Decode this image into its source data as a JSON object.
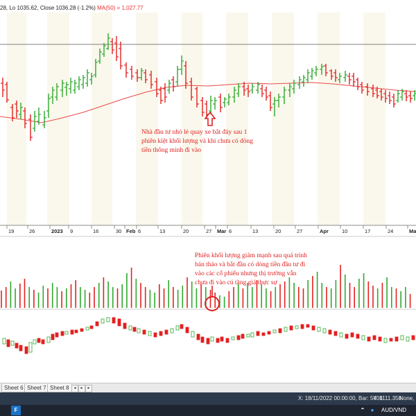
{
  "header": {
    "ohlc_text": "28, Lo 1035.62, Close 1036.28 (-1.2%)",
    "ma_text": "MA(50) = 1,027.77",
    "ma_color": "#e8312e"
  },
  "colors": {
    "up": "#2ea82e",
    "down": "#e32020",
    "ma": "#e84a4a",
    "annotation": "#e02020",
    "grid_band": "#f6f2dc"
  },
  "x_axis": {
    "labels": [
      "19",
      "26",
      "2023",
      "9",
      "16",
      "30",
      "Feb",
      "6",
      "13",
      "20",
      "27",
      "Mar",
      "6",
      "13",
      "20",
      "27",
      "Apr",
      "10",
      "17",
      "24",
      "Ma"
    ]
  },
  "annotations": {
    "price_note": [
      "Nhà đầu tư nhỏ lẻ quay xe bắt đáy sau 1",
      "phiên kiệt khối lượng và khi chưa có dòng",
      "tiền thông minh đi vào"
    ],
    "volume_note": [
      "Phiên khối lượng giảm mạnh sau quá trình",
      "bán tháo và bắt đầu có dòng tiền đầu tư đi",
      "vào các cổ phiếu nhưng thị trường vẫn",
      "chưa đi vào cú tăng giá thực sự"
    ]
  },
  "chart_data": {
    "type": "candlestick",
    "symbol_note": "OHLC price bars with MA(50), volume histogram and lower oscillator",
    "x": [
      "Dec 19",
      "Dec 26",
      "Jan 2 2023",
      "Jan 9",
      "Jan 16",
      "Jan 30",
      "Feb 6",
      "Feb 13",
      "Feb 20",
      "Feb 27",
      "Mar 6",
      "Mar 13",
      "Mar 20",
      "Mar 27",
      "Apr 10",
      "Apr 17",
      "Apr 24"
    ],
    "close_series_approx": [
      1080,
      1040,
      1030,
      1090,
      1120,
      1150,
      1080,
      1075,
      1070,
      1050,
      1070,
      1055,
      1045,
      1080,
      1100,
      1080,
      1060
    ],
    "ma50_approx": [
      1025,
      1020,
      1020,
      1030,
      1045,
      1060,
      1070,
      1075,
      1075,
      1072,
      1073,
      1074,
      1075,
      1076,
      1078,
      1076,
      1070
    ],
    "ma_label": "MA(50)"
  },
  "sheets": {
    "tabs": [
      "Sheet 6",
      "Sheet 7",
      "Sheet 8"
    ]
  },
  "status": {
    "crosshair": "X: 18/11/2022 00:00:00, Bar: 5408",
    "y_value": "Y: 1111.358",
    "mode": "None,",
    "pair": "AUD/VND"
  },
  "taskbar": {
    "start_label": "F"
  }
}
